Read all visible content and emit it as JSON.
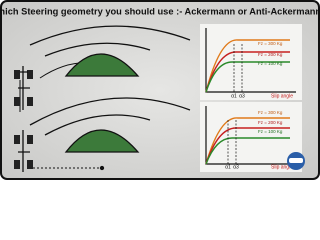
{
  "header": {
    "title": "Which Steering geometry you should use :- Ackermann or Anti-Ackermann ?"
  },
  "graphs": [
    {
      "curves": [
        {
          "label": "Fz = 300 Kg"
        },
        {
          "label": "Fz = 200 Kg"
        },
        {
          "label": "Fz = 100 Kg"
        }
      ],
      "markers": [
        "α1",
        "α3"
      ],
      "x_label": "Slip angle"
    },
    {
      "curves": [
        {
          "label": "Fz = 300 Kg"
        },
        {
          "label": "Fz = 200 Kg"
        },
        {
          "label": "Fz = 100 Kg"
        }
      ],
      "markers": [
        "α1",
        "α3"
      ],
      "x_label": "Slip angle"
    }
  ]
}
